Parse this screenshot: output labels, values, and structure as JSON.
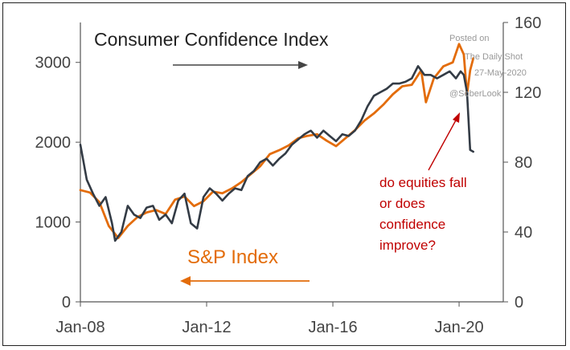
{
  "chart_data": {
    "type": "line",
    "title": "Consumer Confidence Index",
    "series": [
      {
        "name": "S&P Index",
        "axis": "left",
        "color": "#e36c0a",
        "x": [
          2008.0,
          2008.3,
          2008.6,
          2008.9,
          2009.2,
          2009.5,
          2009.8,
          2010.1,
          2010.4,
          2010.7,
          2011.0,
          2011.3,
          2011.6,
          2011.9,
          2012.2,
          2012.5,
          2012.8,
          2013.1,
          2013.4,
          2013.7,
          2014.0,
          2014.3,
          2014.6,
          2014.9,
          2015.2,
          2015.5,
          2015.8,
          2016.1,
          2016.4,
          2016.7,
          2017.0,
          2017.3,
          2017.6,
          2017.9,
          2018.2,
          2018.5,
          2018.8,
          2018.95,
          2019.2,
          2019.5,
          2019.8,
          2020.0,
          2020.15,
          2020.25,
          2020.35,
          2020.45
        ],
        "y": [
          1400,
          1370,
          1250,
          950,
          800,
          950,
          1060,
          1120,
          1150,
          1100,
          1280,
          1320,
          1200,
          1260,
          1380,
          1360,
          1420,
          1500,
          1600,
          1700,
          1850,
          1900,
          1960,
          2050,
          2080,
          2100,
          2020,
          1950,
          2050,
          2150,
          2270,
          2360,
          2470,
          2600,
          2700,
          2720,
          2900,
          2500,
          2800,
          2950,
          3000,
          3230,
          3100,
          2600,
          2900,
          3050
        ]
      },
      {
        "name": "Consumer Confidence Index",
        "axis": "right",
        "color": "#333b45",
        "x": [
          2008.0,
          2008.2,
          2008.4,
          2008.6,
          2008.8,
          2009.0,
          2009.1,
          2009.3,
          2009.5,
          2009.7,
          2009.9,
          2010.1,
          2010.3,
          2010.5,
          2010.7,
          2010.9,
          2011.1,
          2011.3,
          2011.5,
          2011.7,
          2011.9,
          2012.1,
          2012.3,
          2012.5,
          2012.7,
          2012.9,
          2013.1,
          2013.3,
          2013.5,
          2013.7,
          2013.9,
          2014.1,
          2014.3,
          2014.5,
          2014.7,
          2014.9,
          2015.1,
          2015.3,
          2015.5,
          2015.7,
          2015.9,
          2016.1,
          2016.3,
          2016.5,
          2016.7,
          2016.9,
          2017.1,
          2017.3,
          2017.5,
          2017.7,
          2017.9,
          2018.1,
          2018.3,
          2018.5,
          2018.7,
          2018.9,
          2019.1,
          2019.3,
          2019.5,
          2019.7,
          2019.9,
          2020.05,
          2020.15,
          2020.25,
          2020.35,
          2020.45
        ],
        "y": [
          90,
          70,
          62,
          55,
          60,
          45,
          35,
          40,
          55,
          50,
          48,
          54,
          55,
          47,
          50,
          45,
          58,
          62,
          45,
          42,
          60,
          65,
          62,
          58,
          62,
          65,
          64,
          72,
          75,
          80,
          82,
          78,
          82,
          85,
          90,
          93,
          96,
          98,
          94,
          98,
          95,
          92,
          96,
          95,
          98,
          104,
          112,
          118,
          120,
          122,
          125,
          125,
          126,
          128,
          135,
          130,
          130,
          128,
          130,
          132,
          128,
          132,
          130,
          120,
          87,
          86
        ]
      }
    ],
    "x_ticks": [
      "Jan-08",
      "Jan-12",
      "Jan-16",
      "Jan-20"
    ],
    "x_tick_values": [
      2008,
      2012,
      2016,
      2020
    ],
    "xlim": [
      2008,
      2021.4
    ],
    "y_left_ticks": [
      0,
      1000,
      2000,
      3000
    ],
    "y_left_lim": [
      0,
      3500
    ],
    "y_right_ticks": [
      0,
      40,
      80,
      120,
      160
    ],
    "y_right_lim": [
      0,
      160
    ],
    "grid": false,
    "legend": "none",
    "labels": {
      "confidence": "Consumer Confidence Index",
      "sp": "S&P Index"
    },
    "annotation": {
      "lines": [
        "do equities fall",
        "or does",
        "confidence",
        "improve?"
      ],
      "color": "#c00000"
    },
    "watermark": {
      "lines": [
        "Posted on",
        "The Daily Shot",
        "27-May-2020",
        "@SoberLook"
      ]
    }
  }
}
